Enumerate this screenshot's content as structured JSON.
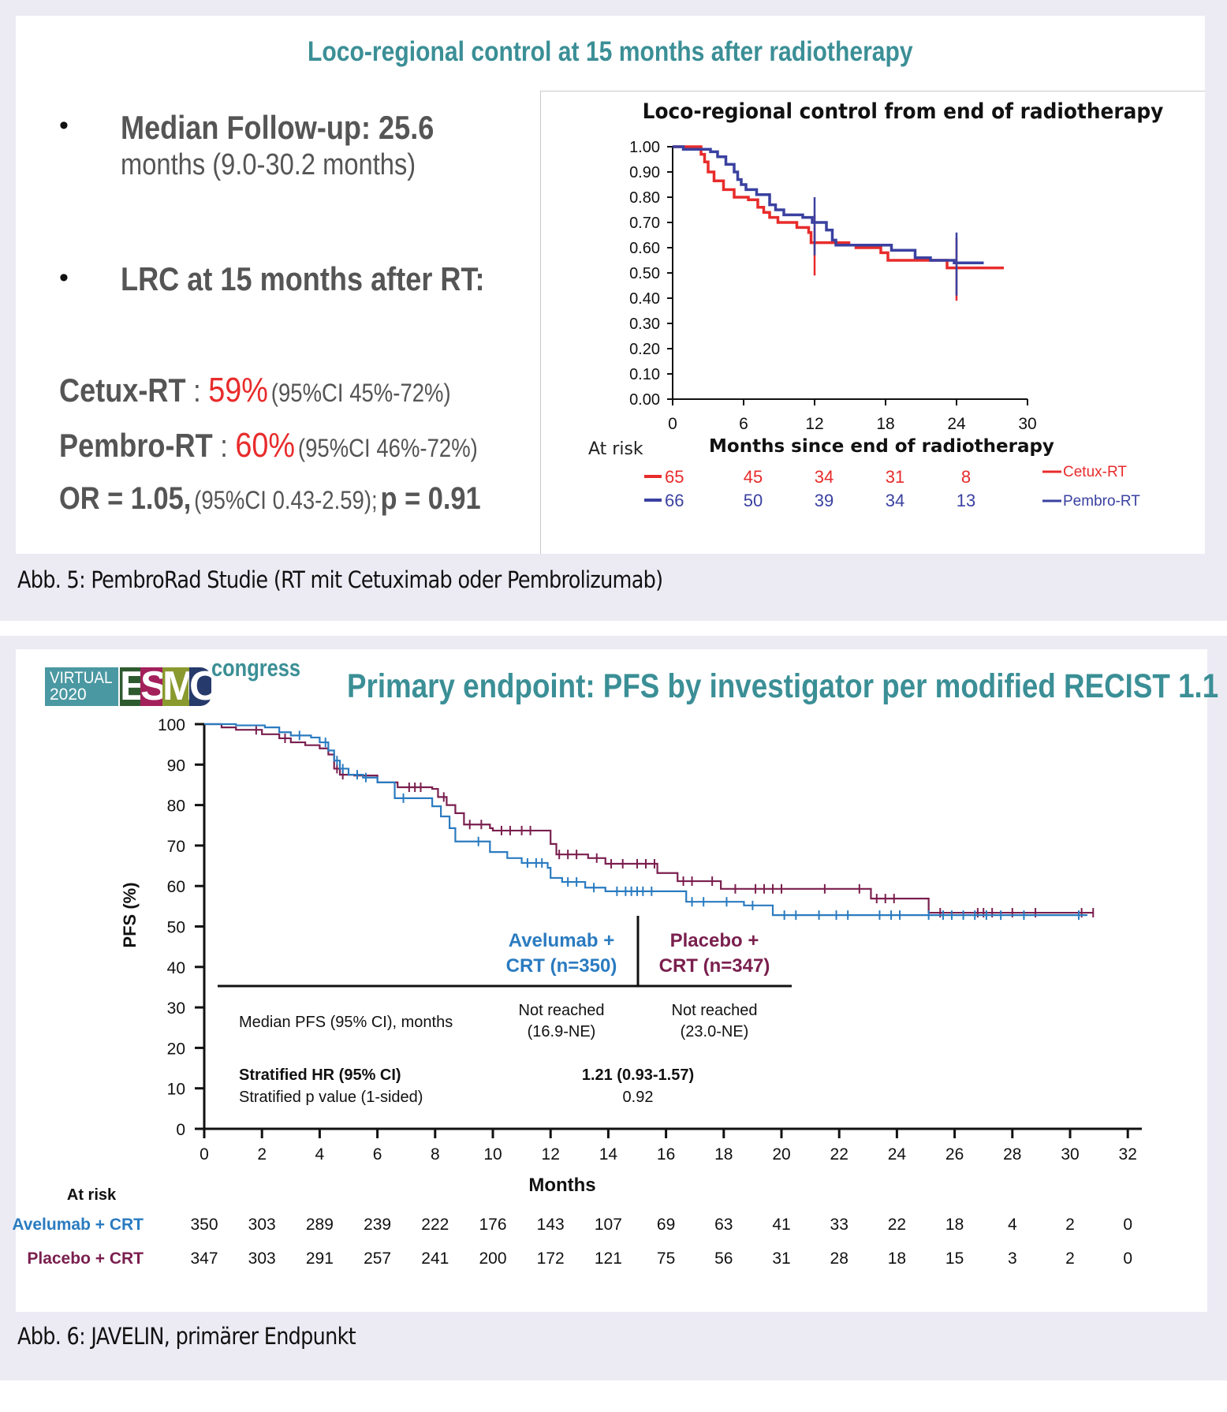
{
  "figure5": {
    "caption": "Abb. 5: PembroRad Studie (RT mit Cetuximab oder Pembrolizumab)",
    "slide_title": "Loco-regional control at 15 months after radiotherapy",
    "bullets": [
      {
        "bold": "Median Follow-up: 25.6",
        "normal": "months (9.0-30.2 months)"
      },
      {
        "bold": "LRC at 15 months after RT:"
      }
    ],
    "results": [
      {
        "arm": "Cetux-RT",
        "sep": " : ",
        "value": "59%",
        "ci": "(95%CI 45%-72%)"
      },
      {
        "arm": "Pembro-RT",
        "sep": " : ",
        "value": "60%",
        "ci": "(95%CI 46%-72%)"
      }
    ],
    "or_line": {
      "or": "OR = 1.05,",
      "ci": "(95%CI 0.43-2.59);",
      "p": "p = 0.91"
    },
    "bullet_glyph": "•",
    "colors": {
      "title": "#3b8f96",
      "highlight": "#e82b2b",
      "cetux": "#e82b2b",
      "pembro": "#3a41a0"
    }
  },
  "figure6": {
    "caption": "Abb. 6: JAVELIN, primärer Endpunkt",
    "logo": {
      "virtual": "VIRTUAL",
      "year": "2020",
      "letters": [
        "E",
        "S",
        "M",
        "O"
      ],
      "congress": "congress"
    },
    "slide_title": "Primary endpoint: PFS by investigator per modified RECIST 1.1",
    "table": {
      "arm1_line1": "Avelumab +",
      "arm1_line2": "CRT (n=350)",
      "arm2_line1": "Placebo +",
      "arm2_line2": "CRT (n=347)",
      "median_label": "Median PFS (95% CI), months",
      "arm1_median": "Not reached",
      "arm1_median_ci": "(16.9-NE)",
      "arm2_median": "Not reached",
      "arm2_median_ci": "(23.0-NE)",
      "hr_label": "Stratified HR (95% CI)",
      "hr_value": "1.21 (0.93-1.57)",
      "p_label": "Stratified p value (1-sided)",
      "p_value": "0.92"
    },
    "colors": {
      "title": "#3b8f96",
      "avelumab": "#2a7bc0",
      "placebo": "#7a1f4e"
    }
  },
  "chart_data": [
    {
      "type": "line",
      "subtype": "kaplan-meier",
      "title": "Loco-regional control from end of radiotherapy",
      "xlabel": "Months since end of radiotherapy",
      "ylabel": "",
      "xlim": [
        0,
        30
      ],
      "ylim": [
        0,
        1
      ],
      "xticks": [
        "0",
        "6",
        "12",
        "18",
        "24",
        "30"
      ],
      "xtick_values": [
        0,
        6,
        12,
        18,
        24,
        30
      ],
      "yticks": [
        "0.00",
        "0.10",
        "0.20",
        "0.30",
        "0.40",
        "0.50",
        "0.60",
        "0.70",
        "0.80",
        "0.90",
        "1.00"
      ],
      "ytick_values": [
        0,
        0.1,
        0.2,
        0.3,
        0.4,
        0.5,
        0.6,
        0.7,
        0.8,
        0.9,
        1.0
      ],
      "grid": false,
      "legend": {
        "placement": "right of at-risk table",
        "entries": [
          "Cetux-RT",
          "Pembro-RT"
        ]
      },
      "series": [
        {
          "name": "Cetux-RT",
          "color": "#e82b2b",
          "x": [
            0,
            2.4,
            2.7,
            3.0,
            3.5,
            4.3,
            5.2,
            6.4,
            7.2,
            7.7,
            8.2,
            8.9,
            10.5,
            11.5,
            11.7,
            14.9,
            15.5,
            17.6,
            18.2,
            23.2,
            28.0
          ],
          "y": [
            1.0,
            0.97,
            0.94,
            0.9,
            0.865,
            0.83,
            0.8,
            0.79,
            0.76,
            0.74,
            0.72,
            0.7,
            0.68,
            0.66,
            0.62,
            0.61,
            0.6,
            0.58,
            0.55,
            0.52,
            0.52
          ],
          "error_bars": [
            {
              "x": 12,
              "low": 0.49,
              "high": 0.73
            },
            {
              "x": 24,
              "low": 0.39,
              "high": 0.64
            }
          ]
        },
        {
          "name": "Pembro-RT",
          "color": "#3a41a0",
          "x": [
            0,
            0.9,
            3.2,
            3.8,
            4.5,
            5.2,
            5.5,
            5.8,
            6.2,
            7.1,
            8.2,
            8.7,
            9.4,
            11.0,
            11.8,
            13.0,
            13.5,
            13.8,
            14.7,
            18.5,
            20.5,
            21.8,
            23.8,
            26.3
          ],
          "y": [
            1.0,
            0.99,
            0.98,
            0.96,
            0.93,
            0.9,
            0.87,
            0.85,
            0.83,
            0.81,
            0.77,
            0.75,
            0.73,
            0.72,
            0.7,
            0.67,
            0.63,
            0.61,
            0.61,
            0.59,
            0.56,
            0.55,
            0.54,
            0.54
          ],
          "error_bars": [
            {
              "x": 12,
              "low": 0.57,
              "high": 0.8
            },
            {
              "x": 24,
              "low": 0.41,
              "high": 0.66
            }
          ]
        }
      ],
      "at_risk": {
        "label": "At risk",
        "rows": [
          {
            "name": "Cetux-RT",
            "values": [
              "65",
              "45",
              "34",
              "31",
              "8"
            ]
          },
          {
            "name": "Pembro-RT",
            "values": [
              "66",
              "50",
              "39",
              "34",
              "13"
            ]
          }
        ]
      }
    },
    {
      "type": "line",
      "subtype": "kaplan-meier",
      "title": "Primary endpoint: PFS by investigator per modified RECIST 1.1",
      "xlabel": "Months",
      "ylabel": "PFS (%)",
      "xlim": [
        0,
        32
      ],
      "ylim": [
        0,
        100
      ],
      "xticks": [
        "0",
        "2",
        "4",
        "6",
        "8",
        "10",
        "12",
        "14",
        "16",
        "18",
        "20",
        "22",
        "24",
        "26",
        "28",
        "30",
        "32"
      ],
      "xtick_values": [
        0,
        2,
        4,
        6,
        8,
        10,
        12,
        14,
        16,
        18,
        20,
        22,
        24,
        26,
        28,
        30,
        32
      ],
      "yticks": [
        "0",
        "10",
        "20",
        "30",
        "40",
        "50",
        "60",
        "70",
        "80",
        "90",
        "100"
      ],
      "ytick_values": [
        0,
        10,
        20,
        30,
        40,
        50,
        60,
        70,
        80,
        90,
        100
      ],
      "grid": false,
      "series": [
        {
          "name": "Avelumab + CRT",
          "color": "#2a7bc0",
          "x": [
            0,
            1.1,
            2.1,
            2.6,
            3.0,
            3.7,
            4.0,
            4.3,
            4.5,
            4.7,
            5.0,
            5.5,
            6.0,
            6.6,
            7.9,
            8.2,
            8.5,
            8.7,
            9.9,
            10.5,
            11.0,
            11.9,
            12.0,
            12.4,
            13.2,
            13.9,
            16.7,
            18.7,
            19.7,
            30.6
          ],
          "y": [
            100,
            99.7,
            99.2,
            98,
            97.2,
            96.7,
            95.5,
            93.5,
            91,
            89,
            87.5,
            86.8,
            85.6,
            81.7,
            79.7,
            77.2,
            74.3,
            71,
            68.4,
            66.9,
            65.7,
            64.5,
            62,
            61,
            59.6,
            58.7,
            56.1,
            55.2,
            52.8,
            52.8
          ],
          "censor_x": [
            3.3,
            4.2,
            4.6,
            4.8,
            5.3,
            5.6,
            6.9,
            9.5,
            11.2,
            11.5,
            11.7,
            12.6,
            12.9,
            13.5,
            14.3,
            14.6,
            14.8,
            15.0,
            15.2,
            15.5,
            16.9,
            17.3,
            18.1,
            19.0,
            20.1,
            20.5,
            21.3,
            21.9,
            22.3,
            23.4,
            23.8,
            24.1,
            25.1,
            25.6,
            25.9,
            26.3,
            26.7,
            27.1,
            27.6,
            28.4,
            30.3
          ]
        },
        {
          "name": "Placebo + CRT",
          "color": "#7a1f4e",
          "x": [
            0,
            0.6,
            1.1,
            2.0,
            2.6,
            3.0,
            3.5,
            4.0,
            4.3,
            4.5,
            4.7,
            5.2,
            6.0,
            6.7,
            7.9,
            8.1,
            8.4,
            8.7,
            9.0,
            9.9,
            10.0,
            11.5,
            12.0,
            12.2,
            13.3,
            13.9,
            15.7,
            16.4,
            17.9,
            23.1,
            25.1,
            30.8
          ],
          "y": [
            100,
            99.2,
            98.6,
            97.5,
            96.5,
            95.5,
            94.8,
            94.0,
            92.5,
            89,
            87.5,
            87.3,
            85.6,
            84.4,
            84.0,
            82,
            80,
            78,
            75.2,
            74.3,
            73.7,
            73.7,
            70.4,
            67.8,
            66.9,
            65.5,
            63.2,
            61.2,
            59.3,
            56.9,
            53.4,
            53.4
          ],
          "censor_x": [
            1.8,
            2.8,
            4.6,
            4.8,
            7.1,
            7.3,
            7.5,
            8.3,
            9.2,
            9.6,
            10.3,
            10.6,
            11.0,
            11.3,
            12.3,
            12.6,
            12.9,
            13.6,
            14.1,
            14.5,
            15.0,
            15.3,
            15.6,
            16.6,
            16.9,
            17.6,
            18.4,
            19.1,
            19.4,
            19.7,
            20.0,
            21.5,
            22.7,
            23.3,
            23.6,
            23.9,
            25.5,
            26.8,
            27.0,
            27.3,
            28.0,
            28.8,
            30.4,
            30.8
          ]
        }
      ],
      "at_risk": {
        "label": "At risk",
        "rows": [
          {
            "name": "Avelumab + CRT",
            "values": [
              "350",
              "303",
              "289",
              "239",
              "222",
              "176",
              "143",
              "107",
              "69",
              "63",
              "41",
              "33",
              "22",
              "18",
              "4",
              "2",
              "0"
            ]
          },
          {
            "name": "Placebo + CRT",
            "values": [
              "347",
              "303",
              "291",
              "257",
              "241",
              "200",
              "172",
              "121",
              "75",
              "56",
              "31",
              "28",
              "18",
              "15",
              "3",
              "2",
              "0"
            ]
          }
        ]
      }
    }
  ]
}
